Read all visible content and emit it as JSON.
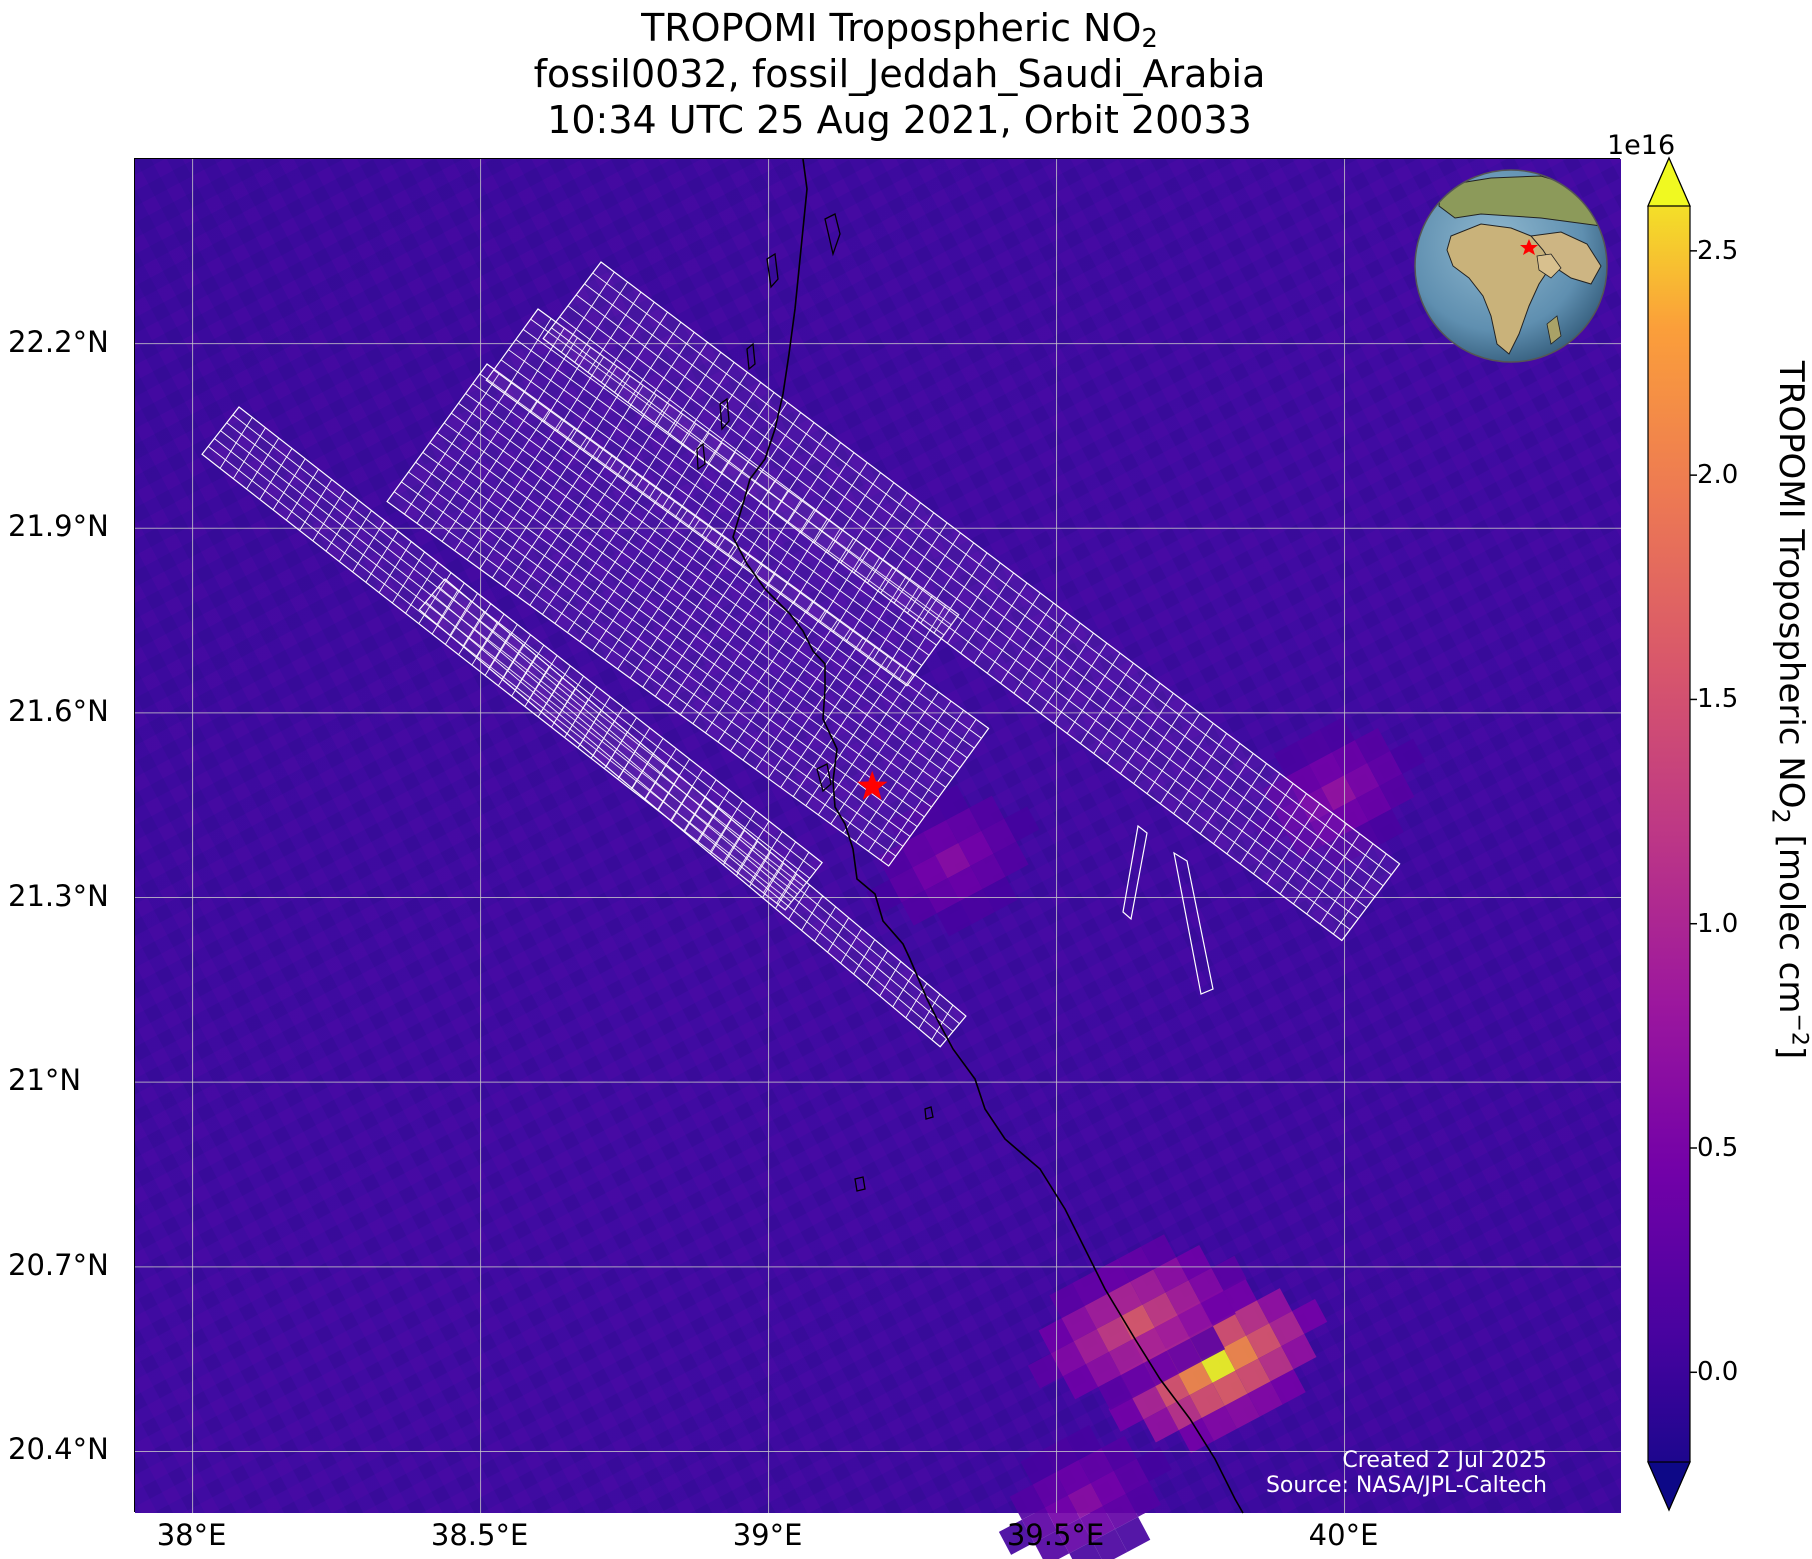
{
  "title": {
    "line1_main": "TROPOMI Tropospheric NO",
    "line1_sub": "2",
    "line2": "fossil0032, fossil_Jeddah_Saudi_Arabia",
    "line3": "10:34 UTC 25 Aug 2021, Orbit 20033"
  },
  "map": {
    "lon_range": [
      37.9,
      40.48
    ],
    "lat_range": [
      20.3,
      22.5
    ],
    "lat_ticks": [
      {
        "value": 22.2,
        "label": "22.2°N"
      },
      {
        "value": 21.9,
        "label": "21.9°N"
      },
      {
        "value": 21.6,
        "label": "21.6°N"
      },
      {
        "value": 21.3,
        "label": "21.3°N"
      },
      {
        "value": 21.0,
        "label": "21°N"
      },
      {
        "value": 20.7,
        "label": "20.7°N"
      },
      {
        "value": 20.4,
        "label": "20.4°N"
      }
    ],
    "lon_ticks": [
      {
        "value": 38.0,
        "label": "38°E"
      },
      {
        "value": 38.5,
        "label": "38.5°E"
      },
      {
        "value": 39.0,
        "label": "39°E"
      },
      {
        "value": 39.5,
        "label": "39.5°E"
      },
      {
        "value": 40.0,
        "label": "40°E"
      }
    ],
    "site_marker": {
      "lon": 39.18,
      "lat": 21.48,
      "color": "#ff0000",
      "icon": "star-icon"
    },
    "background_color": "#3d0aa0",
    "gridline_color": "#c8c8c8",
    "grid": true,
    "plumes": [
      {
        "lon": 39.78,
        "lat": 20.54,
        "value": 2.6
      },
      {
        "lon": 39.64,
        "lat": 20.61,
        "value": 1.6
      },
      {
        "lon": 39.99,
        "lat": 21.47,
        "value": 0.8
      },
      {
        "lon": 39.32,
        "lat": 21.36,
        "value": 0.7
      },
      {
        "lon": 39.55,
        "lat": 20.32,
        "value": 0.7
      }
    ]
  },
  "globe_inset": {
    "icon": "globe-icon",
    "marker_color": "#ff0000"
  },
  "colorbar": {
    "exponent_label": "1e16",
    "title_main": "TROPOMI Tropospheric NO",
    "title_sub": "2",
    "title_units_open": " [molec cm",
    "title_units_sup": "−2",
    "title_units_close": "]",
    "colormap": "plasma",
    "range": [
      -0.2,
      2.6
    ],
    "ticks": [
      {
        "value": 2.5,
        "label": "2.5"
      },
      {
        "value": 2.0,
        "label": "2.0"
      },
      {
        "value": 1.5,
        "label": "1.5"
      },
      {
        "value": 1.0,
        "label": "1.0"
      },
      {
        "value": 0.5,
        "label": "0.5"
      },
      {
        "value": 0.0,
        "label": "0.0"
      }
    ],
    "extend": "both"
  },
  "credits": {
    "line1": "Created 2 Jul 2025",
    "line2": "Source: NASA/JPL-Caltech"
  }
}
